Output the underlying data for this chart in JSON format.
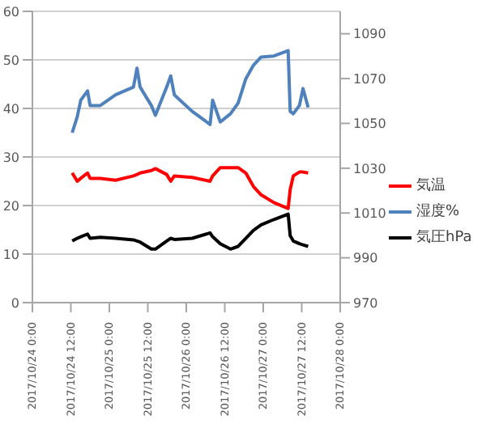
{
  "chart_data": {
    "type": "line",
    "x": [
      "2017-10-24T12:25",
      "2017-10-24T14:00",
      "2017-10-24T15:05",
      "2017-10-24T17:12",
      "2017-10-24T18:00",
      "2017-10-24T21:11",
      "2017-10-25T01:57",
      "2017-10-25T07:31",
      "2017-10-25T08:38",
      "2017-10-25T09:36",
      "2017-10-25T13:06",
      "2017-10-25T14:22",
      "2017-10-25T17:53",
      "2017-10-25T19:09",
      "2017-10-25T20:16",
      "2017-10-26T01:50",
      "2017-10-26T07:25",
      "2017-10-26T08:13",
      "2017-10-26T10:36",
      "2017-10-26T13:47",
      "2017-10-26T16:10",
      "2017-10-26T18:33",
      "2017-10-26T20:57",
      "2017-10-26T23:20",
      "2017-10-27T03:19",
      "2017-10-27T07:46",
      "2017-10-27T08:24",
      "2017-10-27T09:22",
      "2017-10-27T11:17",
      "2017-10-27T12:24",
      "2017-10-27T14:00"
    ],
    "series": [
      {
        "name": "気温",
        "color": "#ff0000",
        "values": [
          26.7,
          25,
          25.6,
          26.7,
          25.6,
          25.6,
          25.2,
          26.1,
          26.4,
          26.7,
          27.2,
          27.6,
          26.4,
          25,
          26.1,
          25.8,
          25,
          26.1,
          27.8,
          27.8,
          27.8,
          26.7,
          23.9,
          22.2,
          20.6,
          19.4,
          23.3,
          26.1,
          26.9,
          26.9,
          26.7
        ]
      },
      {
        "name": "湿度%",
        "color": "#4f81bd",
        "values": [
          35,
          38.3,
          41.7,
          43.6,
          40.6,
          40.6,
          42.8,
          44.4,
          48.3,
          44.4,
          40.6,
          38.6,
          44.4,
          46.7,
          42.8,
          39.4,
          36.7,
          41.7,
          37.2,
          38.9,
          41.1,
          46.1,
          48.9,
          50.6,
          50.8,
          51.9,
          39.4,
          38.9,
          40.6,
          44.1,
          40.2
        ]
      },
      {
        "name": "気圧hPa",
        "color": "#000000",
        "axis": "y2",
        "values": [
          997.5,
          998.7,
          999.4,
          1000.6,
          998.7,
          999.2,
          998.7,
          998,
          997.5,
          997,
          993.9,
          993.9,
          997.5,
          998.7,
          998.2,
          998.7,
          1001.1,
          999.4,
          996.3,
          993.9,
          995.1,
          998.7,
          1002.3,
          1004.7,
          1007.1,
          1009.5,
          999.9,
          997.5,
          996.3,
          995.8,
          995.1
        ]
      }
    ],
    "xlim": [
      "2017-10-24T00:00",
      "2017-10-28T00:00"
    ],
    "xticks": [
      {
        "value": "2017-10-24T00:00",
        "label": "2017/10/24 0:00"
      },
      {
        "value": "2017-10-24T12:00",
        "label": "2017/10/24 12:00"
      },
      {
        "value": "2017-10-25T00:00",
        "label": "2017/10/25 0:00"
      },
      {
        "value": "2017-10-25T12:00",
        "label": "2017/10/25 12:00"
      },
      {
        "value": "2017-10-26T00:00",
        "label": "2017/10/26 0:00"
      },
      {
        "value": "2017-10-26T12:00",
        "label": "2017/10/26 12:00"
      },
      {
        "value": "2017-10-27T00:00",
        "label": "2017/10/27 0:00"
      },
      {
        "value": "2017-10-27T12:00",
        "label": "2017/10/27 12:00"
      },
      {
        "value": "2017-10-28T00:00",
        "label": "2017/10/28 0:00"
      }
    ],
    "ylim": [
      0,
      60
    ],
    "yticks": [
      0,
      10,
      20,
      30,
      40,
      50,
      60
    ],
    "y2lim": [
      970,
      1100
    ],
    "y2ticks": [
      970,
      990,
      1010,
      1030,
      1050,
      1070,
      1090
    ],
    "grid": "y",
    "legend": "right",
    "line_style": "solid"
  }
}
